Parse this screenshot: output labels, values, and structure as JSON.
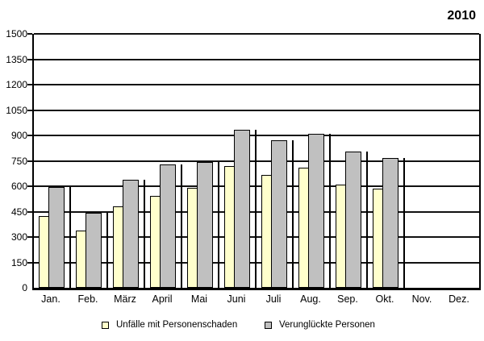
{
  "chart_data": {
    "type": "bar",
    "title": "2010",
    "categories": [
      "Jan.",
      "Feb.",
      "März",
      "April",
      "Mai",
      "Juni",
      "Juli",
      "Aug.",
      "Sep.",
      "Okt.",
      "Nov.",
      "Dez."
    ],
    "series": [
      {
        "name": "Unfälle mit Personenschaden",
        "color": "#FFFFCC",
        "values": [
          425,
          340,
          480,
          545,
          590,
          720,
          665,
          710,
          610,
          585,
          null,
          null
        ]
      },
      {
        "name": "Verunglückte Personen",
        "color": "#C0C0C0",
        "values": [
          595,
          445,
          640,
          730,
          745,
          935,
          870,
          910,
          805,
          765,
          null,
          null
        ]
      }
    ],
    "ylim": [
      0,
      1500
    ],
    "yticks": [
      0,
      150,
      300,
      450,
      600,
      750,
      900,
      1050,
      1200,
      1350,
      1500
    ],
    "grid": "horizontal",
    "legend_position": "bottom",
    "bar_border_color": "#000000",
    "gridline_color": "#111111"
  }
}
